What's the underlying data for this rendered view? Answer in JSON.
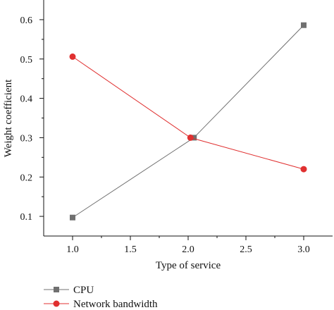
{
  "chart_data": {
    "type": "line",
    "title": "",
    "xlabel": "Type of service",
    "ylabel": "Weight coefficient",
    "xlim": [
      0.75,
      3.25
    ],
    "ylim": [
      0.05,
      0.65
    ],
    "x_ticks": [
      1.0,
      1.5,
      2.0,
      2.5,
      3.0
    ],
    "x_tick_labels": [
      "1.0",
      "1.5",
      "2.0",
      "2.5",
      "3.0"
    ],
    "y_ticks": [
      0.1,
      0.2,
      0.3,
      0.4,
      0.5,
      0.6
    ],
    "y_tick_labels": [
      "0.1",
      "0.2",
      "0.3",
      "0.4",
      "0.5",
      "0.6"
    ],
    "grid": false,
    "legend_position": "bottom-left",
    "series": [
      {
        "name": "CPU",
        "color": "#707070",
        "marker": "square",
        "x": [
          1.0,
          2.05,
          3.0
        ],
        "y": [
          0.097,
          0.3,
          0.586
        ]
      },
      {
        "name": "Network bandwidth",
        "color": "#e03030",
        "marker": "circle",
        "x": [
          1.0,
          2.02,
          3.0
        ],
        "y": [
          0.506,
          0.3,
          0.22
        ]
      }
    ]
  }
}
